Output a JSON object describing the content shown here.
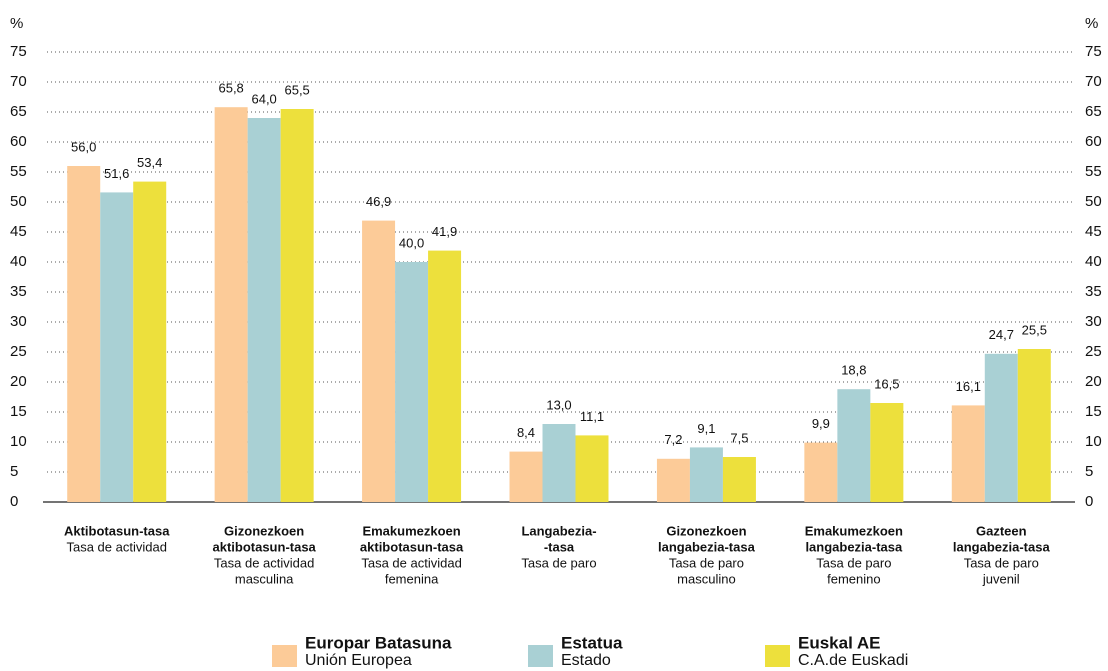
{
  "chart_data": {
    "type": "bar",
    "ylabel": "%",
    "y2label": "%",
    "categories": [
      {
        "title": [
          "Aktibotasun-tasa"
        ],
        "subtitle": [
          "Tasa de actividad"
        ]
      },
      {
        "title": [
          "Gizonezkoen",
          "aktibotasun-tasa"
        ],
        "subtitle": [
          "Tasa de actividad",
          "masculina"
        ]
      },
      {
        "title": [
          "Emakumezkoen",
          "aktibotasun-tasa"
        ],
        "subtitle": [
          "Tasa de actividad",
          "femenina"
        ]
      },
      {
        "title": [
          "Langabezia-",
          "-tasa"
        ],
        "subtitle": [
          "Tasa de paro"
        ]
      },
      {
        "title": [
          "Gizonezkoen",
          "langabezia-tasa"
        ],
        "subtitle": [
          "Tasa de paro",
          "masculino"
        ]
      },
      {
        "title": [
          "Emakumezkoen",
          "langabezia-tasa"
        ],
        "subtitle": [
          "Tasa de paro",
          "femenino"
        ]
      },
      {
        "title": [
          "Gazteen",
          "langabezia-tasa"
        ],
        "subtitle": [
          "Tasa de paro",
          "juvenil"
        ]
      }
    ],
    "series": [
      {
        "name": "Europar Batasuna",
        "subname": "Unión Europea",
        "color": "#fccb98",
        "values": [
          56.0,
          65.8,
          46.9,
          8.4,
          7.2,
          9.9,
          16.1
        ],
        "value_labels": [
          "56,0",
          "65,8",
          "46,9",
          "8,4",
          "7,2",
          "9,9",
          "16,1"
        ]
      },
      {
        "name": "Estatua",
        "subname": "Estado",
        "color": "#a9d0d4",
        "values": [
          51.6,
          64.0,
          40.0,
          13.0,
          9.1,
          18.8,
          24.7
        ],
        "value_labels": [
          "51,6",
          "64,0",
          "40,0",
          "13,0",
          "9,1",
          "18,8",
          "24,7"
        ]
      },
      {
        "name": "Euskal AE",
        "subname": "C.A.de Euskadi",
        "color": "#ede03c",
        "values": [
          53.4,
          65.5,
          41.9,
          11.1,
          7.5,
          16.5,
          25.5
        ],
        "value_labels": [
          "53,4",
          "65,5",
          "41,9",
          "11,1",
          "7,5",
          "16,5",
          "25,5"
        ]
      }
    ],
    "ylim": [
      0,
      75
    ],
    "yticks": [
      0,
      5,
      10,
      15,
      20,
      25,
      30,
      35,
      40,
      45,
      50,
      55,
      60,
      65,
      70,
      75
    ],
    "y2lim": [
      0,
      75
    ],
    "y2ticks": [
      0,
      5,
      10,
      15,
      20,
      25,
      30,
      35,
      40,
      45,
      50,
      55,
      60,
      65,
      70,
      75
    ],
    "grid": true
  }
}
